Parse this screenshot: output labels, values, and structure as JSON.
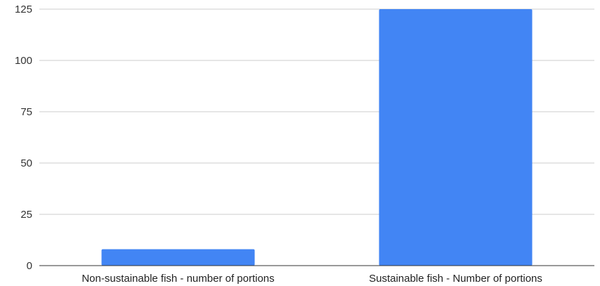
{
  "chart_data": {
    "type": "bar",
    "categories": [
      "Non-sustainable fish - number of portions",
      "Sustainable fish - Number of portions"
    ],
    "values": [
      8,
      125
    ],
    "ylim": [
      0,
      125
    ],
    "yticks": [
      0,
      25,
      50,
      75,
      100,
      125
    ],
    "grid": true,
    "legend": "none",
    "bar_color": "#4285f4"
  }
}
